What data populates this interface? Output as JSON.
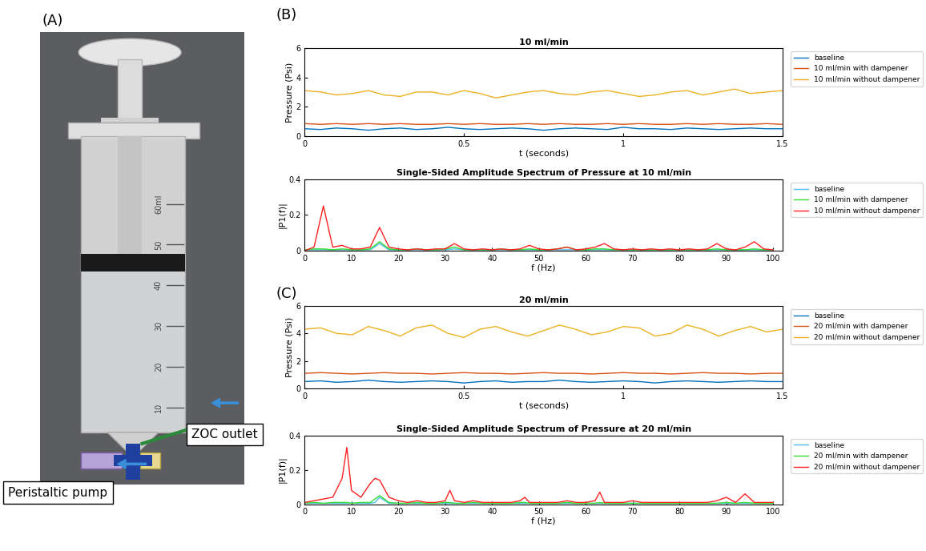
{
  "panel_labels": [
    "(A)",
    "(B)",
    "(C)"
  ],
  "photo": {
    "callouts": [
      "Peristaltic pump",
      "ZOC outlet"
    ],
    "graduations": [
      "10",
      "20",
      "30",
      "40",
      "50",
      "60ml"
    ]
  },
  "chart_data": [
    {
      "type": "line",
      "title": "10 ml/min",
      "xlabel": "t (seconds)",
      "ylabel": "Pressure (Psi)",
      "xlim": [
        0,
        1.5
      ],
      "xticks": [
        0,
        0.5,
        1,
        1.5
      ],
      "ylim": [
        0,
        6
      ],
      "yticks": [
        0,
        2,
        4,
        6
      ],
      "grid": false,
      "legend": "right",
      "x": [
        0,
        0.05,
        0.1,
        0.15,
        0.2,
        0.25,
        0.3,
        0.35,
        0.4,
        0.45,
        0.5,
        0.55,
        0.6,
        0.65,
        0.7,
        0.75,
        0.8,
        0.85,
        0.9,
        0.95,
        1.0,
        1.05,
        1.1,
        1.15,
        1.2,
        1.25,
        1.3,
        1.35,
        1.4,
        1.45,
        1.5
      ],
      "series": [
        {
          "name": "baseline",
          "color": "#0072bd",
          "values": [
            0.5,
            0.45,
            0.55,
            0.5,
            0.4,
            0.5,
            0.55,
            0.45,
            0.5,
            0.6,
            0.5,
            0.45,
            0.5,
            0.55,
            0.5,
            0.4,
            0.5,
            0.55,
            0.5,
            0.45,
            0.6,
            0.5,
            0.5,
            0.45,
            0.55,
            0.5,
            0.45,
            0.5,
            0.55,
            0.5,
            0.5
          ]
        },
        {
          "name": "10 ml/min with dampener",
          "color": "#d95319",
          "values": [
            0.85,
            0.8,
            0.85,
            0.8,
            0.85,
            0.8,
            0.85,
            0.8,
            0.8,
            0.85,
            0.8,
            0.85,
            0.8,
            0.8,
            0.85,
            0.8,
            0.85,
            0.8,
            0.8,
            0.85,
            0.8,
            0.85,
            0.8,
            0.8,
            0.85,
            0.8,
            0.85,
            0.8,
            0.8,
            0.85,
            0.8
          ]
        },
        {
          "name": "10 ml/min without dampener",
          "color": "#edb120",
          "values": [
            3.1,
            3.0,
            2.8,
            2.9,
            3.1,
            2.8,
            2.7,
            3.0,
            3.0,
            2.8,
            3.1,
            2.9,
            2.6,
            2.8,
            3.0,
            3.1,
            2.9,
            2.8,
            3.0,
            3.1,
            2.9,
            2.7,
            2.8,
            3.0,
            3.1,
            2.8,
            3.0,
            3.2,
            2.9,
            3.0,
            3.1
          ]
        }
      ]
    },
    {
      "type": "line",
      "title": "Single-Sided Amplitude Spectrum of Pressure at 10 ml/min",
      "xlabel": "f (Hz)",
      "ylabel": "|P1(f)|",
      "xlim": [
        0,
        102
      ],
      "xticks": [
        0,
        10,
        20,
        30,
        40,
        50,
        60,
        70,
        80,
        90,
        100
      ],
      "ylim": [
        0,
        0.4
      ],
      "yticks": [
        0,
        0.2,
        0.4
      ],
      "grid": false,
      "legend": "right",
      "x": [
        0,
        2,
        4,
        6,
        8,
        10,
        12,
        14,
        16,
        18,
        20,
        22,
        24,
        26,
        28,
        30,
        32,
        34,
        36,
        38,
        40,
        42,
        44,
        46,
        48,
        50,
        52,
        54,
        56,
        58,
        60,
        62,
        64,
        66,
        68,
        70,
        72,
        74,
        76,
        78,
        80,
        82,
        84,
        86,
        88,
        90,
        92,
        94,
        96,
        98,
        100
      ],
      "series": [
        {
          "name": "baseline",
          "color": "#4dbeee",
          "values": [
            0.005,
            0.005,
            0.005,
            0.005,
            0.005,
            0.005,
            0.005,
            0.005,
            0.04,
            0.005,
            0.005,
            0.005,
            0.005,
            0.005,
            0.005,
            0.005,
            0.01,
            0.005,
            0.005,
            0.005,
            0.005,
            0.005,
            0.005,
            0.005,
            0.005,
            0.005,
            0.005,
            0.005,
            0.005,
            0.005,
            0.005,
            0.005,
            0.005,
            0.005,
            0.005,
            0.005,
            0.005,
            0.005,
            0.005,
            0.005,
            0.005,
            0.005,
            0.005,
            0.005,
            0.005,
            0.005,
            0.005,
            0.005,
            0.005,
            0.005,
            0.005
          ]
        },
        {
          "name": "10 ml/min with dampener",
          "color": "#33dd33",
          "values": [
            0.005,
            0.01,
            0.01,
            0.005,
            0.01,
            0.005,
            0.005,
            0.01,
            0.05,
            0.01,
            0.005,
            0.005,
            0.01,
            0.005,
            0.005,
            0.01,
            0.02,
            0.005,
            0.005,
            0.005,
            0.005,
            0.01,
            0.005,
            0.005,
            0.01,
            0.005,
            0.005,
            0.01,
            0.02,
            0.005,
            0.005,
            0.01,
            0.01,
            0.005,
            0.005,
            0.005,
            0.005,
            0.005,
            0.005,
            0.005,
            0.005,
            0.005,
            0.005,
            0.005,
            0.01,
            0.005,
            0.005,
            0.005,
            0.01,
            0.005,
            0.005
          ]
        },
        {
          "name": "10 ml/min without dampener",
          "color": "#ff2020",
          "values": [
            0.0,
            0.02,
            0.25,
            0.02,
            0.03,
            0.01,
            0.01,
            0.02,
            0.13,
            0.02,
            0.01,
            0.005,
            0.01,
            0.005,
            0.01,
            0.01,
            0.04,
            0.01,
            0.005,
            0.01,
            0.005,
            0.01,
            0.005,
            0.01,
            0.03,
            0.01,
            0.005,
            0.01,
            0.02,
            0.005,
            0.01,
            0.02,
            0.04,
            0.01,
            0.005,
            0.01,
            0.005,
            0.01,
            0.005,
            0.01,
            0.005,
            0.01,
            0.005,
            0.01,
            0.04,
            0.01,
            0.005,
            0.02,
            0.05,
            0.01,
            0.005
          ]
        }
      ]
    },
    {
      "type": "line",
      "title": "20 ml/min",
      "xlabel": "t (seconds)",
      "ylabel": "Pressure (Psi)",
      "xlim": [
        0,
        1.5
      ],
      "xticks": [
        0,
        0.5,
        1,
        1.5
      ],
      "ylim": [
        0,
        6
      ],
      "yticks": [
        0,
        2,
        4,
        6
      ],
      "grid": false,
      "legend": "right",
      "x": [
        0,
        0.05,
        0.1,
        0.15,
        0.2,
        0.25,
        0.3,
        0.35,
        0.4,
        0.45,
        0.5,
        0.55,
        0.6,
        0.65,
        0.7,
        0.75,
        0.8,
        0.85,
        0.9,
        0.95,
        1.0,
        1.05,
        1.1,
        1.15,
        1.2,
        1.25,
        1.3,
        1.35,
        1.4,
        1.45,
        1.5
      ],
      "series": [
        {
          "name": "baseline",
          "color": "#0072bd",
          "values": [
            0.5,
            0.55,
            0.45,
            0.5,
            0.6,
            0.5,
            0.45,
            0.5,
            0.55,
            0.5,
            0.4,
            0.5,
            0.55,
            0.45,
            0.5,
            0.5,
            0.6,
            0.5,
            0.45,
            0.5,
            0.55,
            0.5,
            0.4,
            0.5,
            0.55,
            0.5,
            0.45,
            0.5,
            0.55,
            0.5,
            0.5
          ]
        },
        {
          "name": "20 ml/min with dampener",
          "color": "#d95319",
          "values": [
            1.1,
            1.15,
            1.1,
            1.05,
            1.1,
            1.15,
            1.1,
            1.1,
            1.05,
            1.1,
            1.15,
            1.1,
            1.1,
            1.05,
            1.1,
            1.15,
            1.1,
            1.1,
            1.05,
            1.1,
            1.15,
            1.1,
            1.1,
            1.05,
            1.1,
            1.15,
            1.1,
            1.1,
            1.05,
            1.1,
            1.1
          ]
        },
        {
          "name": "20 ml/min without dampener",
          "color": "#edb120",
          "values": [
            4.3,
            4.4,
            4.0,
            3.9,
            4.5,
            4.2,
            3.8,
            4.4,
            4.6,
            4.0,
            3.7,
            4.3,
            4.5,
            4.1,
            3.8,
            4.2,
            4.6,
            4.3,
            3.9,
            4.1,
            4.5,
            4.4,
            3.8,
            4.0,
            4.6,
            4.3,
            3.8,
            4.2,
            4.5,
            4.1,
            4.3
          ]
        }
      ]
    },
    {
      "type": "line",
      "title": "Single-Sided Amplitude Spectrum of Pressure at 20 ml/min",
      "xlabel": "f (Hz)",
      "ylabel": "|P1(f)|",
      "xlim": [
        0,
        102
      ],
      "xticks": [
        0,
        10,
        20,
        30,
        40,
        50,
        60,
        70,
        80,
        90,
        100
      ],
      "ylim": [
        0,
        0.4
      ],
      "yticks": [
        0,
        0.2,
        0.4
      ],
      "grid": false,
      "legend": "right",
      "x": [
        0,
        2,
        4,
        6,
        8,
        9,
        10,
        12,
        14,
        15,
        16,
        18,
        20,
        22,
        24,
        26,
        28,
        30,
        31,
        32,
        34,
        36,
        38,
        40,
        42,
        44,
        46,
        47,
        48,
        50,
        52,
        54,
        56,
        58,
        60,
        62,
        63,
        64,
        66,
        68,
        70,
        72,
        74,
        76,
        78,
        80,
        82,
        84,
        86,
        88,
        90,
        92,
        94,
        96,
        98,
        100
      ],
      "series": [
        {
          "name": "baseline",
          "color": "#4dbeee",
          "values": [
            0.005,
            0.005,
            0.005,
            0.005,
            0.005,
            0.005,
            0.005,
            0.005,
            0.005,
            0.01,
            0.04,
            0.005,
            0.005,
            0.005,
            0.005,
            0.005,
            0.005,
            0.005,
            0.005,
            0.005,
            0.005,
            0.005,
            0.005,
            0.005,
            0.005,
            0.005,
            0.005,
            0.005,
            0.005,
            0.005,
            0.005,
            0.005,
            0.005,
            0.005,
            0.005,
            0.005,
            0.005,
            0.005,
            0.005,
            0.005,
            0.005,
            0.005,
            0.005,
            0.005,
            0.005,
            0.005,
            0.005,
            0.005,
            0.005,
            0.005,
            0.005,
            0.005,
            0.005,
            0.005,
            0.005,
            0.005
          ]
        },
        {
          "name": "20 ml/min with dampener",
          "color": "#33dd33",
          "values": [
            0.005,
            0.01,
            0.005,
            0.01,
            0.01,
            0.01,
            0.005,
            0.01,
            0.01,
            0.03,
            0.05,
            0.01,
            0.005,
            0.005,
            0.01,
            0.005,
            0.005,
            0.01,
            0.01,
            0.005,
            0.005,
            0.01,
            0.005,
            0.005,
            0.005,
            0.005,
            0.01,
            0.01,
            0.005,
            0.005,
            0.005,
            0.005,
            0.01,
            0.005,
            0.005,
            0.005,
            0.01,
            0.005,
            0.005,
            0.005,
            0.005,
            0.005,
            0.005,
            0.005,
            0.005,
            0.005,
            0.005,
            0.005,
            0.005,
            0.005,
            0.01,
            0.005,
            0.01,
            0.005,
            0.005,
            0.005
          ]
        },
        {
          "name": "20 ml/min without dampener",
          "color": "#ff2020",
          "values": [
            0.01,
            0.02,
            0.03,
            0.04,
            0.15,
            0.33,
            0.08,
            0.04,
            0.12,
            0.15,
            0.14,
            0.04,
            0.02,
            0.01,
            0.02,
            0.01,
            0.01,
            0.02,
            0.08,
            0.02,
            0.01,
            0.02,
            0.01,
            0.01,
            0.01,
            0.01,
            0.02,
            0.04,
            0.01,
            0.01,
            0.01,
            0.01,
            0.02,
            0.01,
            0.01,
            0.02,
            0.07,
            0.01,
            0.01,
            0.01,
            0.02,
            0.01,
            0.01,
            0.01,
            0.01,
            0.01,
            0.01,
            0.01,
            0.01,
            0.02,
            0.04,
            0.01,
            0.06,
            0.01,
            0.01,
            0.01
          ]
        }
      ]
    }
  ]
}
